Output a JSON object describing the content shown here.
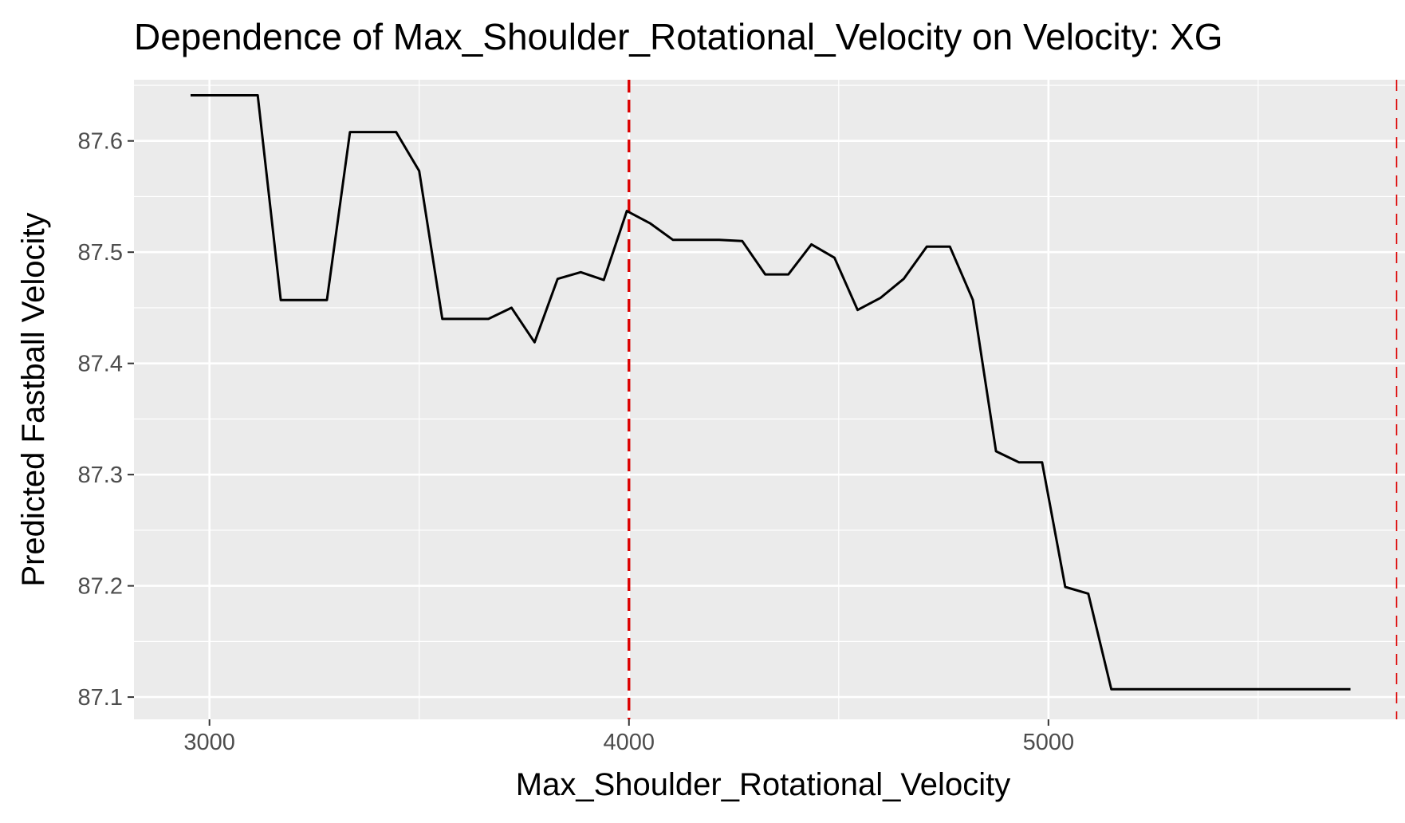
{
  "chart_data": {
    "type": "line",
    "title": "Dependence of Max_Shoulder_Rotational_Velocity on Velocity: XG",
    "xlabel": "Max_Shoulder_Rotational_Velocity",
    "ylabel": "Predicted Fastball Velocity",
    "xlim": [
      2820,
      5850
    ],
    "ylim": [
      87.08,
      87.655
    ],
    "x_ticks": [
      3000,
      4000,
      5000
    ],
    "x_tick_labels": [
      "3000",
      "4000",
      "5000"
    ],
    "y_ticks": [
      87.1,
      87.2,
      87.3,
      87.4,
      87.5,
      87.6
    ],
    "y_tick_labels": [
      "87.1",
      "87.2",
      "87.3",
      "87.4",
      "87.5",
      "87.6"
    ],
    "grid": true,
    "background": "#ebebeb",
    "series": [
      {
        "color": "#000000",
        "x": [
          2955,
          3115,
          3170,
          3280,
          3335,
          3445,
          3500,
          3555,
          3665,
          3720,
          3775,
          3830,
          3885,
          3940,
          3995,
          4050,
          4105,
          4215,
          4270,
          4325,
          4380,
          4435,
          4490,
          4545,
          4600,
          4655,
          4710,
          4765,
          4820,
          4875,
          4930,
          4985,
          5040,
          5095,
          5150,
          5720
        ],
        "y": [
          87.641,
          87.641,
          87.457,
          87.457,
          87.608,
          87.608,
          87.573,
          87.44,
          87.44,
          87.45,
          87.419,
          87.476,
          87.482,
          87.475,
          87.537,
          87.526,
          87.511,
          87.511,
          87.51,
          87.48,
          87.48,
          87.507,
          87.495,
          87.448,
          87.459,
          87.476,
          87.505,
          87.505,
          87.457,
          87.321,
          87.311,
          87.311,
          87.199,
          87.193,
          87.107,
          87.107
        ]
      }
    ],
    "vlines": [
      {
        "x": 4000,
        "color": "#dd0000",
        "style": "dashed"
      },
      {
        "x": 5830,
        "color": "#dd0000",
        "style": "dashed"
      }
    ]
  }
}
